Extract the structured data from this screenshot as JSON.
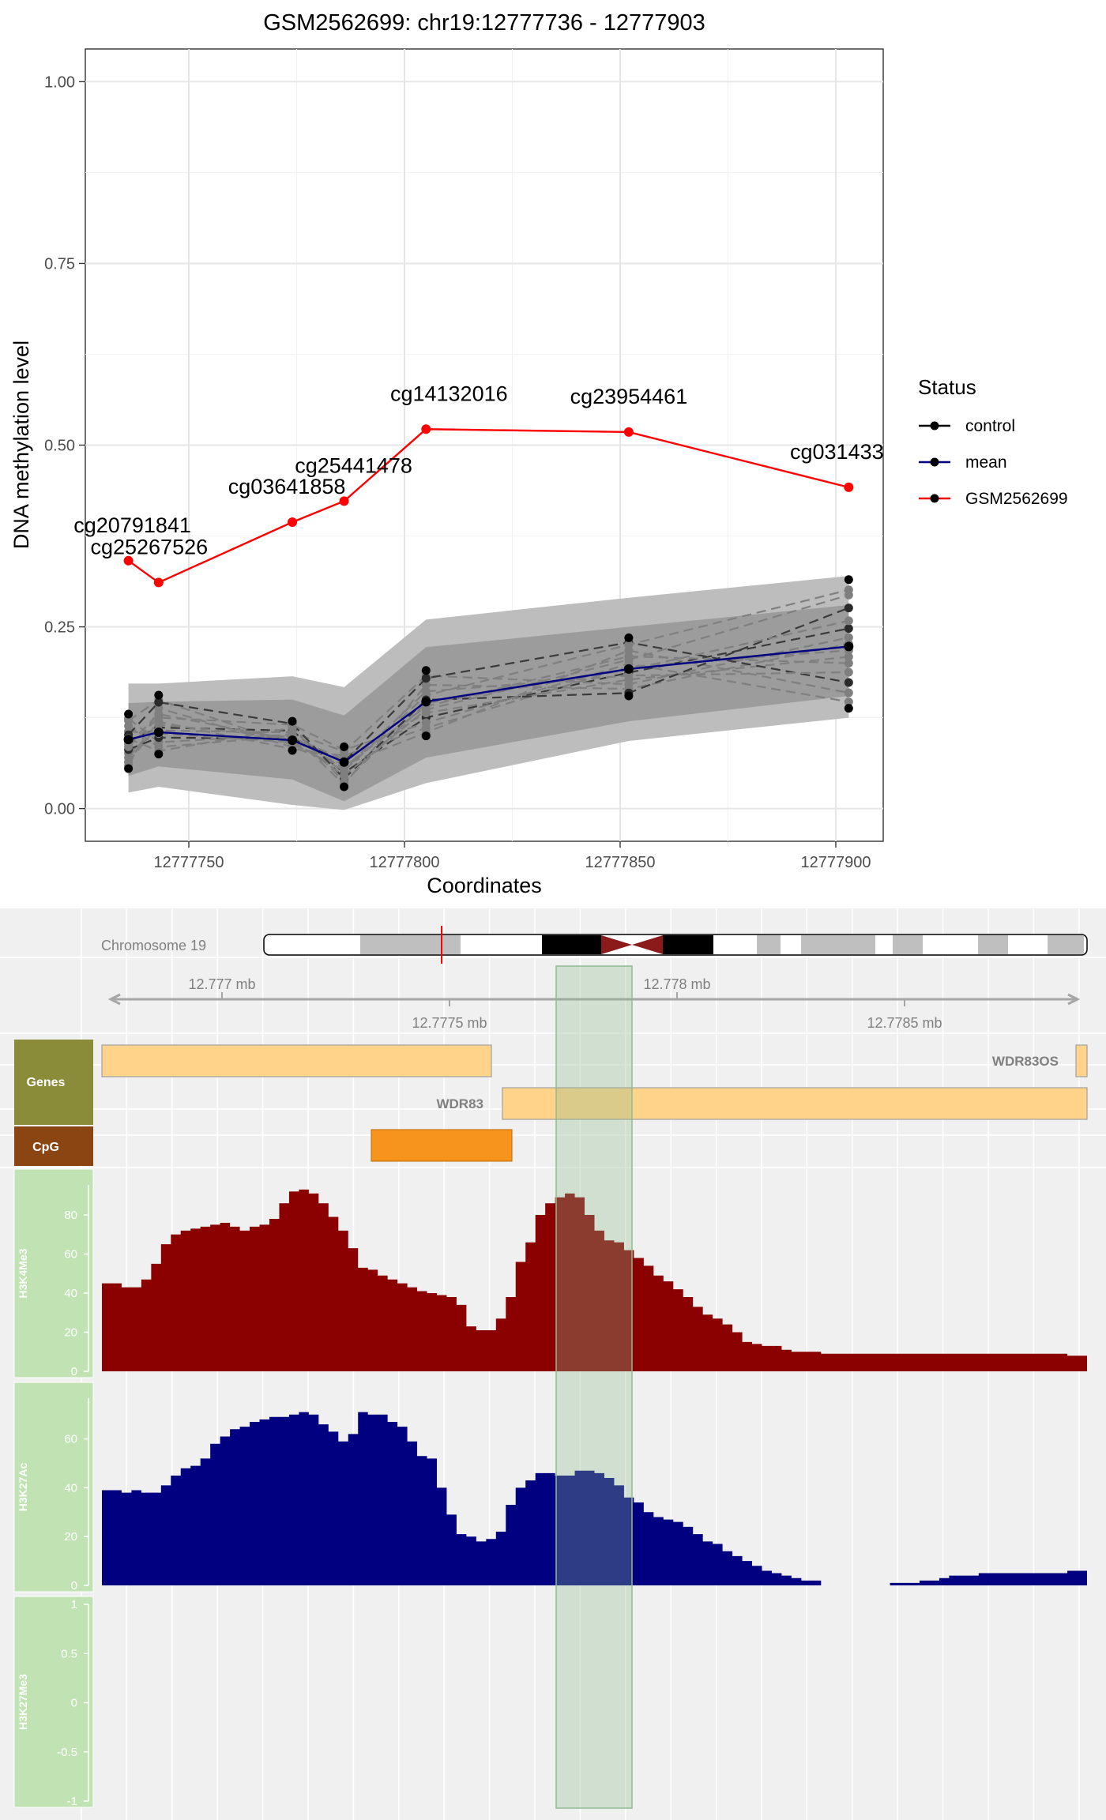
{
  "chart_data": [
    {
      "type": "line",
      "title": "GSM2562699: chr19:12777736 - 12777903",
      "xlabel": "Coordinates",
      "ylabel": "DNA methylation level",
      "xlim": [
        12777726,
        12777911
      ],
      "ylim": [
        -0.045,
        1.045
      ],
      "x_ticks": [
        12777750,
        12777800,
        12777850,
        12777900
      ],
      "y_ticks": [
        0.0,
        0.25,
        0.5,
        0.75,
        1.0
      ],
      "y_tick_labels": [
        "0.00",
        "0.25",
        "0.50",
        "0.75",
        "1.00"
      ],
      "grid": true,
      "legend": {
        "title": "Status",
        "position": "right",
        "entries": [
          {
            "name": "control",
            "color": "#000000"
          },
          {
            "name": "mean",
            "color": "#000080"
          },
          {
            "name": "GSM2562699",
            "color": "#ff0000"
          }
        ]
      },
      "x": [
        12777736,
        12777743,
        12777774,
        12777786,
        12777805,
        12777852,
        12777903
      ],
      "probes": [
        "cg20791841",
        "cg25267526",
        "cg03641858",
        "cg25441478",
        "cg14132016",
        "cg23954461",
        "cg031433"
      ],
      "series": [
        {
          "name": "GSM2562699",
          "color": "#ff0000",
          "values": [
            0.341,
            0.311,
            0.394,
            0.423,
            0.522,
            0.518,
            0.442
          ]
        },
        {
          "name": "mean",
          "color": "#000080",
          "values": [
            0.095,
            0.105,
            0.094,
            0.064,
            0.147,
            0.192,
            0.223
          ]
        },
        {
          "name": "control",
          "color": "#000000",
          "min": [
            0.055,
            0.075,
            0.08,
            0.03,
            0.1,
            0.155,
            0.138
          ],
          "max": [
            0.13,
            0.156,
            0.12,
            0.085,
            0.19,
            0.235,
            0.315
          ]
        }
      ],
      "bands": [
        {
          "name": "outer",
          "color": "#bdbdbd",
          "upper": [
            0.172,
            0.172,
            0.182,
            0.167,
            0.26,
            0.29,
            0.32
          ],
          "lower": [
            0.022,
            0.03,
            0.005,
            -0.002,
            0.035,
            0.093,
            0.125
          ]
        },
        {
          "name": "inner",
          "color": "#9c9c9c",
          "upper": [
            0.145,
            0.147,
            0.15,
            0.128,
            0.222,
            0.25,
            0.28
          ],
          "lower": [
            0.045,
            0.058,
            0.04,
            0.01,
            0.07,
            0.12,
            0.155
          ]
        }
      ]
    },
    {
      "type": "bar",
      "title": "Chromosome 19",
      "axis": {
        "upper_ticks": [
          "12.777 mb",
          "12.778 mb"
        ],
        "lower_ticks": [
          "12.7775 mb",
          "12.7785 mb"
        ]
      },
      "tracks": [
        {
          "name": "Genes",
          "color": "#8b8c3a",
          "features": [
            "WDR83OS",
            "WDR83"
          ]
        },
        {
          "name": "CpG",
          "color": "#8b4513"
        },
        {
          "name": "H3K4Me3",
          "color": "#8b0000",
          "ylim": [
            0,
            97
          ],
          "y_ticks": [
            "0",
            "20",
            "40",
            "60",
            "80"
          ],
          "values": [
            45,
            45,
            43,
            43,
            47,
            55,
            65,
            70,
            72,
            73,
            74,
            75,
            76,
            74,
            72,
            74,
            75,
            78,
            86,
            92,
            93,
            91,
            86,
            79,
            72,
            63,
            53,
            52,
            49,
            47,
            45,
            43,
            41,
            40,
            39,
            38,
            34,
            23,
            21,
            21,
            27,
            38,
            56,
            66,
            80,
            86,
            89,
            91,
            89,
            80,
            72,
            67,
            66,
            62,
            58,
            54,
            49,
            46,
            42,
            38,
            33,
            29,
            27,
            24,
            20,
            15,
            14,
            13,
            13,
            11,
            10,
            10,
            10,
            9,
            9,
            9,
            9,
            9,
            9,
            9,
            9,
            9,
            9,
            9,
            9,
            9,
            9,
            9,
            9,
            9,
            9,
            9,
            9,
            9,
            9,
            9,
            9,
            9,
            8,
            8
          ]
        },
        {
          "name": "H3K27Ac",
          "color": "#000080",
          "ylim": [
            0,
            78
          ],
          "y_ticks": [
            "0",
            "20",
            "40",
            "60"
          ],
          "values": [
            39,
            39,
            38,
            39,
            38,
            38,
            41,
            45,
            48,
            49,
            52,
            58,
            61,
            64,
            65,
            67,
            68,
            69,
            69,
            70,
            71,
            70,
            66,
            63,
            59,
            62,
            71,
            70,
            70,
            67,
            65,
            59,
            53,
            52,
            40,
            29,
            21,
            20,
            18,
            19,
            22,
            33,
            40,
            43,
            46,
            46,
            45,
            45,
            47,
            47,
            46,
            44,
            41,
            36,
            34,
            30,
            28,
            27,
            26,
            24,
            21,
            18,
            17,
            14,
            12,
            10,
            8,
            6,
            5,
            4,
            3,
            2,
            2,
            0,
            0,
            0,
            0,
            0,
            0,
            0,
            1,
            1,
            1,
            2,
            2,
            3,
            4,
            4,
            4,
            5,
            5,
            5,
            5,
            5,
            5,
            5,
            5,
            5,
            6,
            6
          ]
        },
        {
          "name": "H3K27Me3",
          "color": "#bfe2b2",
          "ylim": [
            -1,
            1
          ],
          "y_ticks": [
            "-1",
            "-0.5",
            "0",
            "0.5",
            "1"
          ]
        }
      ]
    }
  ]
}
